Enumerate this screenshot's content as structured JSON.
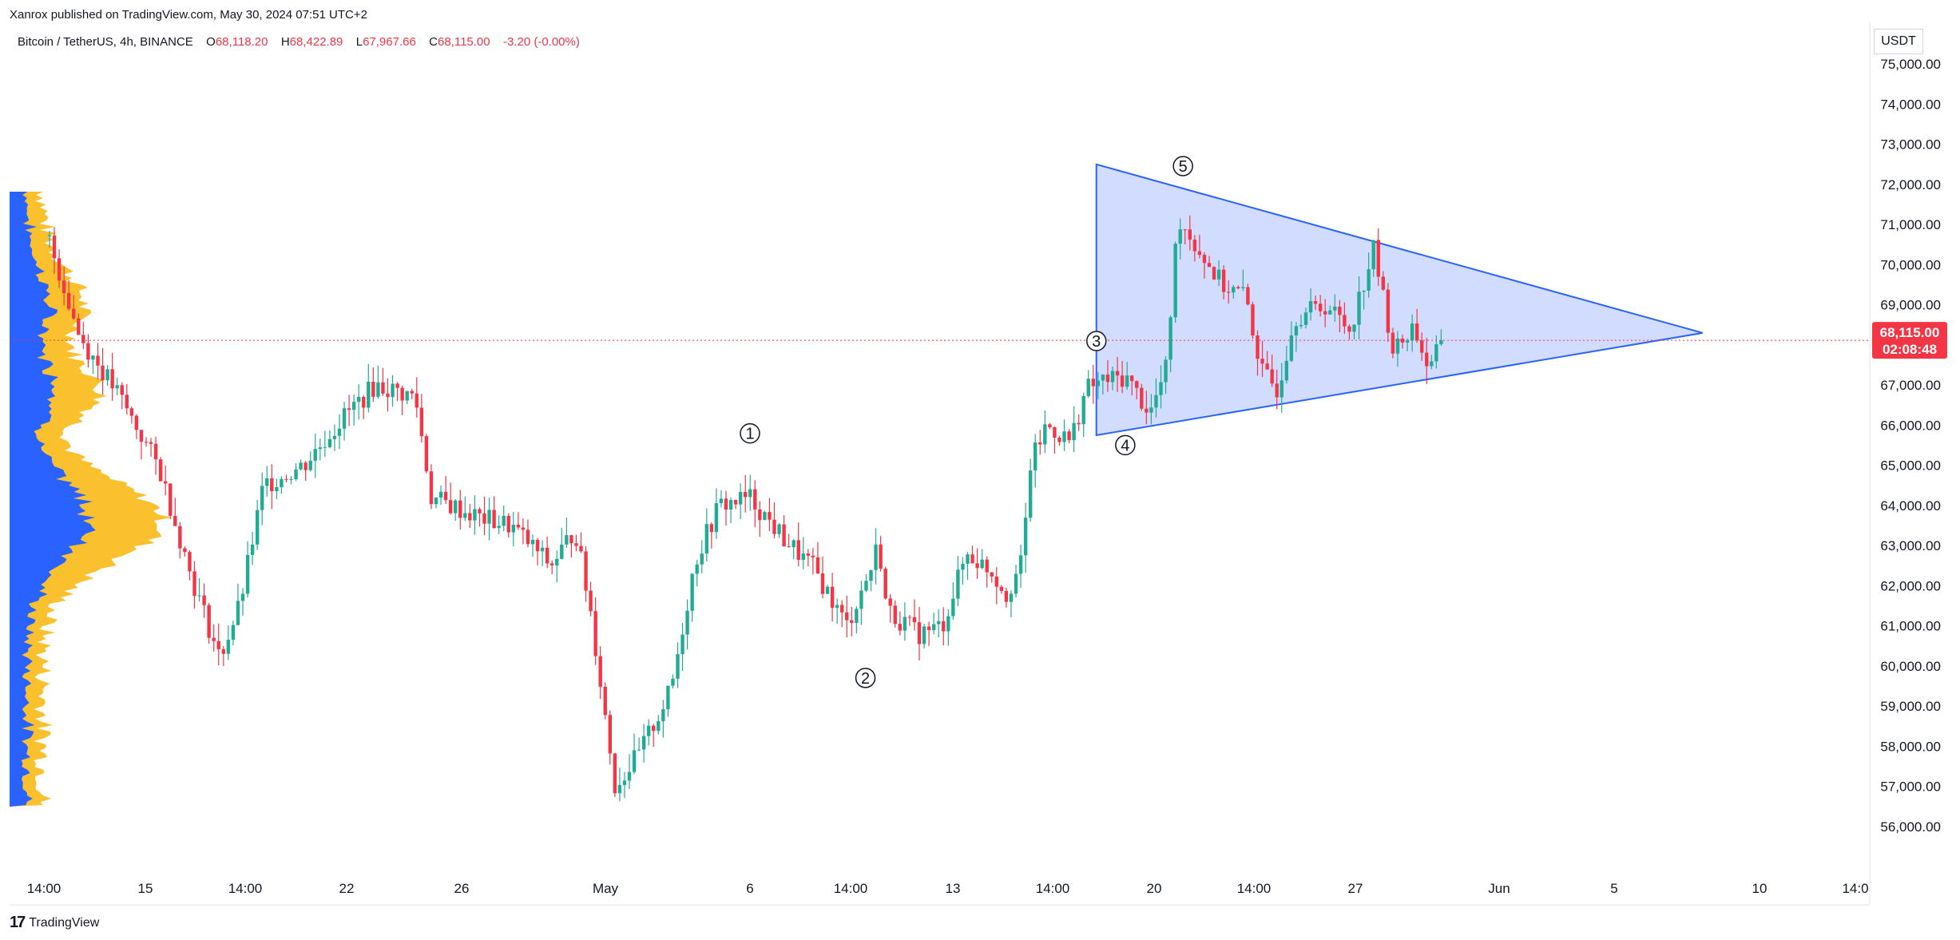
{
  "publisher_line": "Xanrox published on TradingView.com, May 30, 2024 07:51 UTC+2",
  "legend": {
    "symbol": "Bitcoin / TetherUS, 4h, BINANCE",
    "o_label": "O",
    "o_value": "68,118.20",
    "h_label": "H",
    "h_value": "68,422.89",
    "l_label": "L",
    "l_value": "67,967.66",
    "c_label": "C",
    "c_value": "68,115.00",
    "change": "-3.20 (-0.00%)"
  },
  "currency": "USDT",
  "last_price": {
    "value": "68,115.00",
    "countdown": "02:08:48",
    "color": "#f23645"
  },
  "footer": {
    "brand": "TradingView",
    "icon": "tradingview-logo-icon"
  },
  "colors": {
    "up": "#22ab94",
    "down": "#f23645",
    "triangle_stroke": "#2962ff",
    "triangle_fill": "#b3c5ff",
    "vp_blue": "#2962ff",
    "vp_yellow": "#fbc02d"
  },
  "chart_data": {
    "type": "candlestick",
    "interval": "4h",
    "y_ticks": [
      "75,000.00",
      "74,000.00",
      "73,000.00",
      "72,000.00",
      "71,000.00",
      "70,000.00",
      "69,000.00",
      "68,000.00",
      "67,000.00",
      "66,000.00",
      "65,000.00",
      "64,000.00",
      "63,000.00",
      "62,000.00",
      "61,000.00",
      "60,000.00",
      "59,000.00",
      "58,000.00",
      "57,000.00",
      "56,000.00"
    ],
    "ylim": [
      55500,
      75800
    ],
    "x_ticks": [
      "14:00",
      "15",
      "14:00",
      "22",
      "26",
      "May",
      "6",
      "14:00",
      "13",
      "14:00",
      "20",
      "14:00",
      "27",
      "Jun",
      "5",
      "10",
      "14:0"
    ],
    "key_points": [
      {
        "label": "1",
        "date": "May 6",
        "price": 65200
      },
      {
        "label": "2",
        "date": "May 10",
        "price": 60300
      },
      {
        "label": "3",
        "date": "May 18",
        "price": 67500
      },
      {
        "label": "4",
        "date": "May 19",
        "price": 66000
      },
      {
        "label": "5",
        "date": "May 21",
        "price": 71900
      }
    ],
    "triangle": [
      {
        "date": "May 18",
        "price": 72500
      },
      {
        "date": "Jun 8",
        "price": 68300
      },
      {
        "date": "May 18",
        "price": 65750
      }
    ],
    "close_line": 68115,
    "volume_profile": "visible range, blue/yellow"
  }
}
